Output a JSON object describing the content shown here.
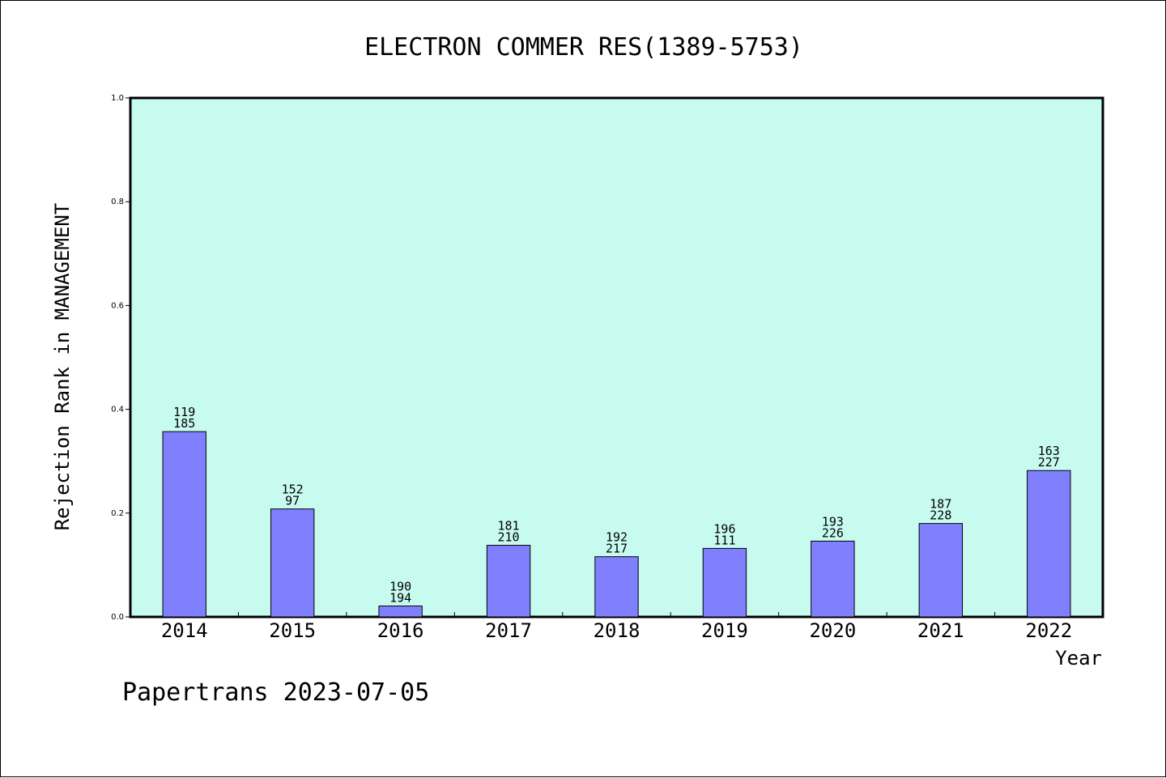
{
  "footer": "Papertrans 2023-07-05",
  "colors": {
    "plot_background": "#c8fbef",
    "bar_fill": "#8080ff",
    "bar_stroke": "#000000"
  },
  "chart_data": {
    "type": "bar",
    "title": "ELECTRON COMMER RES(1389-5753)",
    "xlabel": "Year",
    "ylabel": "Rejection Rank in MANAGEMENT",
    "ylim": [
      0,
      1.0
    ],
    "yticks": [
      "0.0",
      "0.2",
      "0.4",
      "0.6",
      "0.8",
      "1.0"
    ],
    "grid": false,
    "categories": [
      "2014",
      "2015",
      "2016",
      "2017",
      "2018",
      "2019",
      "2020",
      "2021",
      "2022"
    ],
    "values": [
      0.357,
      0.208,
      0.021,
      0.138,
      0.116,
      0.132,
      0.146,
      0.18,
      0.282
    ],
    "annotations": [
      [
        "119",
        "185"
      ],
      [
        "152",
        "97"
      ],
      [
        "190",
        "194"
      ],
      [
        "181",
        "210"
      ],
      [
        "192",
        "217"
      ],
      [
        "196",
        "111"
      ],
      [
        "193",
        "226"
      ],
      [
        "187",
        "228"
      ],
      [
        "163",
        "227"
      ]
    ]
  }
}
